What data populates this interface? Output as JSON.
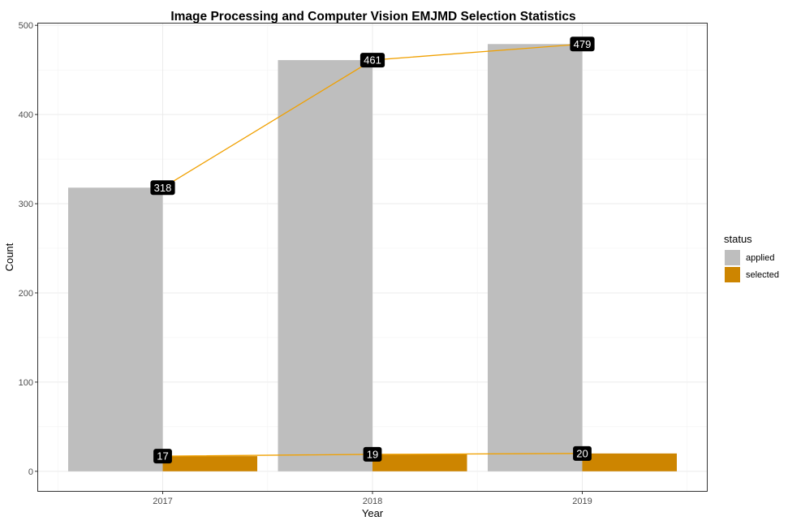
{
  "chart_data": {
    "type": "bar",
    "title": "Image Processing and Computer Vision EMJMD Selection Statistics",
    "xlabel": "Year",
    "ylabel": "Count",
    "categories": [
      "2017",
      "2018",
      "2019"
    ],
    "series": [
      {
        "name": "applied",
        "values": [
          318,
          461,
          479
        ],
        "color": "#bebebe"
      },
      {
        "name": "selected",
        "values": [
          17,
          19,
          20
        ],
        "color": "#cd8500"
      }
    ],
    "overlay_lines": {
      "color": "#f0a000",
      "series": [
        "applied",
        "selected"
      ]
    },
    "data_labels": {
      "background": "#000000",
      "text_color": "#ffffff"
    },
    "ylim": [
      -22,
      502
    ],
    "yticks": [
      0,
      100,
      200,
      300,
      400,
      500
    ],
    "grid": true,
    "legend": {
      "title": "status",
      "position": "right"
    }
  }
}
